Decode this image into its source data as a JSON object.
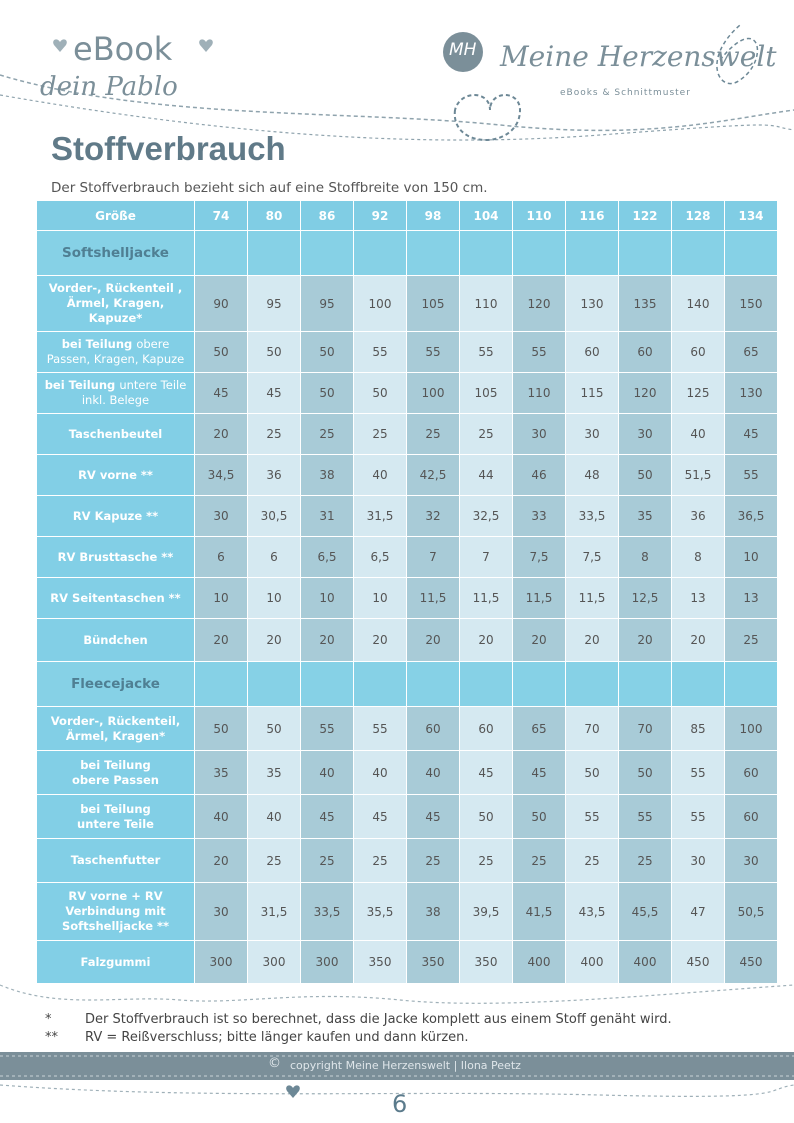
{
  "header": {
    "ebook": "eBook",
    "pattern_name": "dein Pablo",
    "logo_initials": "MH",
    "logo_name": "Meine Herzenswelt",
    "logo_tagline": "eBooks & Schnittmuster"
  },
  "title": "Stoffverbrauch",
  "subtitle": "Der Stoffverbrauch bezieht sich auf eine Stoffbreite von 150 cm.",
  "table": {
    "header": [
      "Größe",
      "74",
      "80",
      "86",
      "92",
      "98",
      "104",
      "110",
      "116",
      "122",
      "128",
      "134"
    ],
    "sections": [
      {
        "title": "Softshelljacke",
        "rows": [
          {
            "label": "Vorder-, Rückenteil ,\nÄrmel, Kragen,\nKapuze*",
            "values": [
              "90",
              "95",
              "95",
              "100",
              "105",
              "110",
              "120",
              "130",
              "135",
              "140",
              "150"
            ]
          },
          {
            "label": "bei Teilung",
            "note": "obere\nPassen, Kragen, Kapuze",
            "values": [
              "50",
              "50",
              "50",
              "55",
              "55",
              "55",
              "55",
              "60",
              "60",
              "60",
              "65"
            ]
          },
          {
            "label": "bei Teilung",
            "note": "untere Teile inkl. Belege",
            "values": [
              "45",
              "45",
              "50",
              "50",
              "100",
              "105",
              "110",
              "115",
              "120",
              "125",
              "130"
            ]
          },
          {
            "label": "Taschenbeutel",
            "values": [
              "20",
              "25",
              "25",
              "25",
              "25",
              "25",
              "30",
              "30",
              "30",
              "40",
              "45"
            ]
          },
          {
            "label": "RV vorne **",
            "values": [
              "34,5",
              "36",
              "38",
              "40",
              "42,5",
              "44",
              "46",
              "48",
              "50",
              "51,5",
              "55"
            ]
          },
          {
            "label": "RV Kapuze **",
            "values": [
              "30",
              "30,5",
              "31",
              "31,5",
              "32",
              "32,5",
              "33",
              "33,5",
              "35",
              "36",
              "36,5"
            ]
          },
          {
            "label": "RV Brusttasche **",
            "values": [
              "6",
              "6",
              "6,5",
              "6,5",
              "7",
              "7",
              "7,5",
              "7,5",
              "8",
              "8",
              "10"
            ]
          },
          {
            "label": "RV Seitentaschen **",
            "values": [
              "10",
              "10",
              "10",
              "10",
              "11,5",
              "11,5",
              "11,5",
              "11,5",
              "12,5",
              "13",
              "13"
            ]
          },
          {
            "label": "Bündchen",
            "values": [
              "20",
              "20",
              "20",
              "20",
              "20",
              "20",
              "20",
              "20",
              "20",
              "20",
              "25"
            ]
          }
        ]
      },
      {
        "title": "Fleecejacke",
        "rows": [
          {
            "label": "Vorder-, Rückenteil,\nÄrmel, Kragen*",
            "values": [
              "50",
              "50",
              "55",
              "55",
              "60",
              "60",
              "65",
              "70",
              "70",
              "85",
              "100"
            ]
          },
          {
            "label": "bei Teilung\nobere Passen",
            "values": [
              "35",
              "35",
              "40",
              "40",
              "40",
              "45",
              "45",
              "50",
              "50",
              "55",
              "60"
            ]
          },
          {
            "label": "bei Teilung\nuntere Teile",
            "values": [
              "40",
              "40",
              "45",
              "45",
              "45",
              "50",
              "50",
              "55",
              "55",
              "55",
              "60"
            ]
          },
          {
            "label": "Taschenfutter",
            "values": [
              "20",
              "25",
              "25",
              "25",
              "25",
              "25",
              "25",
              "25",
              "25",
              "30",
              "30"
            ]
          },
          {
            "label": "RV vorne + RV\nVerbindung mit\nSoftshelljacke **",
            "values": [
              "30",
              "31,5",
              "33,5",
              "35,5",
              "38",
              "39,5",
              "41,5",
              "43,5",
              "45,5",
              "47",
              "50,5"
            ]
          },
          {
            "label": "Falzgummi",
            "values": [
              "300",
              "300",
              "300",
              "350",
              "350",
              "350",
              "400",
              "400",
              "400",
              "450",
              "450"
            ]
          }
        ]
      }
    ]
  },
  "footnotes": [
    {
      "mark": "*",
      "text": "Der Stoffverbrauch ist so berechnet, dass die Jacke komplett aus einem Stoff genäht  wird."
    },
    {
      "mark": "**",
      "text": "RV = Reißverschluss; bitte länger kaufen und dann kürzen."
    }
  ],
  "footer": {
    "copyright_symbol": "©",
    "copyright": "copyright Meine Herzenswelt | Ilona Peetz",
    "page_number": "6"
  }
}
